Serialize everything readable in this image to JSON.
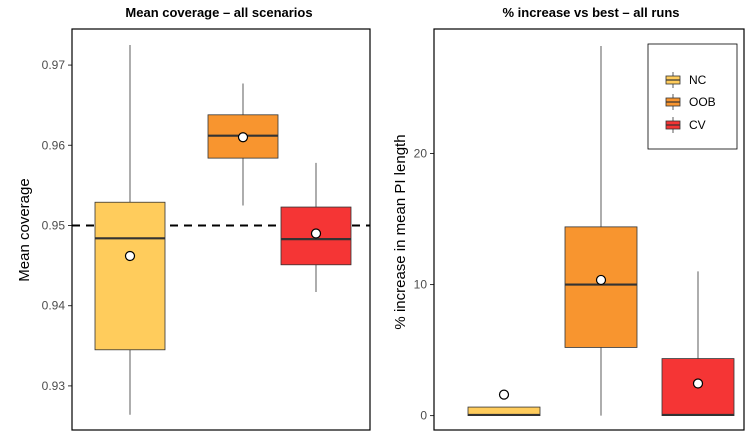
{
  "chart_data": [
    {
      "type": "boxplot",
      "title": "Mean coverage – all scenarios",
      "xlabel": "",
      "ylabel": "Mean coverage",
      "ylim": [
        0.9245,
        0.9745
      ],
      "yticks": [
        0.93,
        0.94,
        0.95,
        0.96,
        0.97
      ],
      "ytick_labels": [
        "0.93",
        "0.94",
        "0.95",
        "0.96",
        "0.97"
      ],
      "reference_line": 0.95,
      "boxes": [
        {
          "name": "NC",
          "color": "#FFCC5C",
          "whisker_low": 0.9264,
          "q1": 0.9345,
          "median": 0.9484,
          "q3": 0.9529,
          "whisker_high": 0.9725,
          "mean": 0.9462
        },
        {
          "name": "OOB",
          "color": "#F8952F",
          "whisker_low": 0.9525,
          "q1": 0.9584,
          "median": 0.9612,
          "q3": 0.9638,
          "whisker_high": 0.9677,
          "mean": 0.961
        },
        {
          "name": "CV",
          "color": "#F53535",
          "whisker_low": 0.9417,
          "q1": 0.9451,
          "median": 0.9483,
          "q3": 0.9523,
          "whisker_high": 0.9578,
          "mean": 0.949
        }
      ]
    },
    {
      "type": "boxplot",
      "title": "% increase vs best – all runs",
      "xlabel": "",
      "ylabel": "% increase in mean PI length",
      "ylim": [
        -1.1,
        29.5
      ],
      "yticks": [
        0,
        10,
        20
      ],
      "ytick_labels": [
        "0",
        "10",
        "20"
      ],
      "boxes": [
        {
          "name": "NC",
          "color": "#FFCC5C",
          "whisker_low": 0,
          "q1": 0,
          "median": 0.05,
          "q3": 0.65,
          "whisker_high": 0.65,
          "mean": 1.6
        },
        {
          "name": "OOB",
          "color": "#F8952F",
          "whisker_low": 0,
          "q1": 5.2,
          "median": 10.0,
          "q3": 14.4,
          "whisker_high": 28.2,
          "mean": 10.35
        },
        {
          "name": "CV",
          "color": "#F53535",
          "whisker_low": 0,
          "q1": 0,
          "median": 0.05,
          "q3": 4.35,
          "whisker_high": 11.0,
          "mean": 2.45
        }
      ],
      "legend": {
        "position": "top-right",
        "entries": [
          {
            "label": "NC",
            "color": "#FFCC5C"
          },
          {
            "label": "OOB",
            "color": "#F8952F"
          },
          {
            "label": "CV",
            "color": "#F53535"
          }
        ]
      }
    }
  ]
}
